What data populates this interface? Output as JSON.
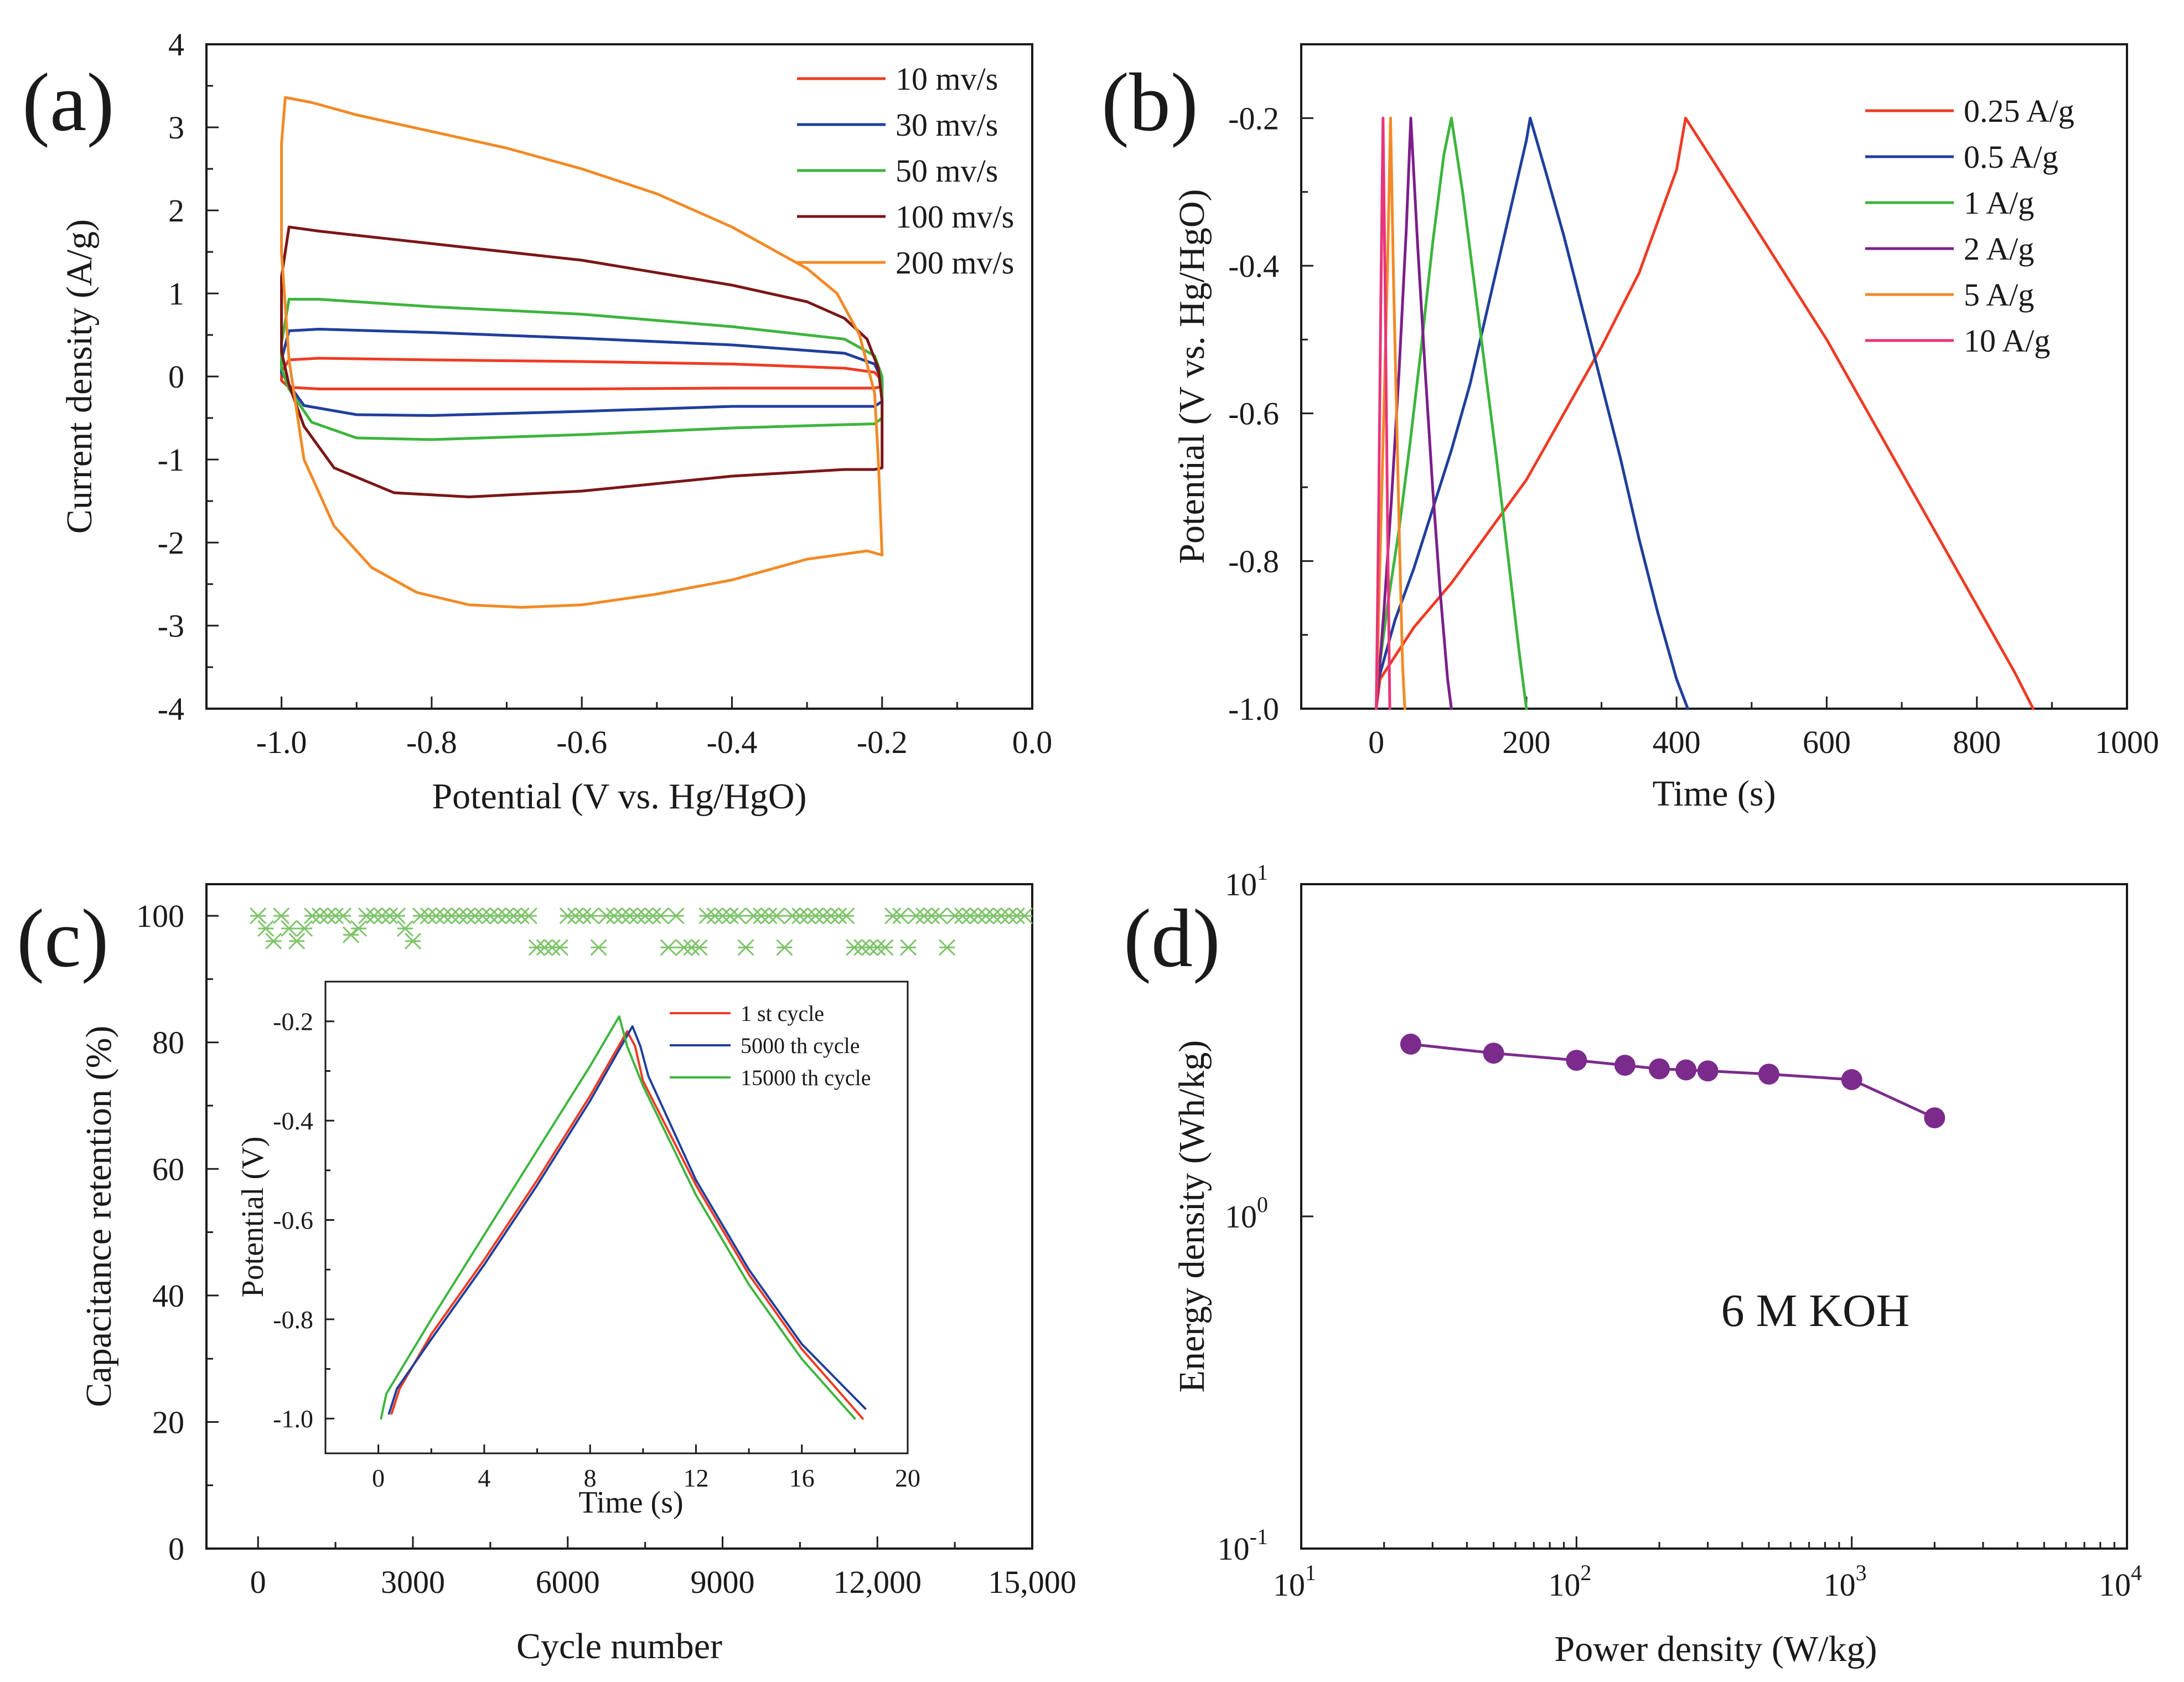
{
  "chart_data": [
    {
      "panel": "(a)",
      "type": "line",
      "title": "",
      "xlabel": "Potential (V vs. Hg/HgO)",
      "ylabel": "Current density (A/g)",
      "xlim": [
        -1.1,
        0.0
      ],
      "ylim": [
        -4,
        4
      ],
      "xticks": [
        -1.0,
        -0.8,
        -0.6,
        -0.4,
        -0.2,
        0.0
      ],
      "xtick_labels": [
        "-1.0",
        "-0.8",
        "-0.6",
        "-0.4",
        "-0.2",
        "0.0"
      ],
      "yticks": [
        -4,
        -3,
        -2,
        -1,
        0,
        1,
        2,
        3,
        4
      ],
      "ytick_labels": [
        "-4",
        "-3",
        "-2",
        "-1",
        "0",
        "1",
        "2",
        "3",
        "4"
      ],
      "legend_position": "top-right",
      "series": [
        {
          "name": "10 mv/s",
          "color": "#ee3b24",
          "x": [
            -1.0,
            -0.99,
            -0.95,
            -0.8,
            -0.6,
            -0.4,
            -0.25,
            -0.21,
            -0.2,
            -0.2,
            -0.21,
            -0.25,
            -0.4,
            -0.6,
            -0.8,
            -0.95,
            -0.99,
            -1.0,
            -1.0
          ],
          "y": [
            0.05,
            0.2,
            0.22,
            0.2,
            0.18,
            0.15,
            0.1,
            0.05,
            -0.05,
            -0.12,
            -0.14,
            -0.14,
            -0.14,
            -0.15,
            -0.15,
            -0.15,
            -0.13,
            -0.05,
            0.05
          ]
        },
        {
          "name": "30 mv/s",
          "color": "#1f3f9c",
          "x": [
            -1.0,
            -0.99,
            -0.95,
            -0.8,
            -0.6,
            -0.4,
            -0.25,
            -0.21,
            -0.2,
            -0.2,
            -0.21,
            -0.25,
            -0.4,
            -0.6,
            -0.8,
            -0.9,
            -0.97,
            -0.99,
            -1.0,
            -1.0
          ],
          "y": [
            0.2,
            0.55,
            0.57,
            0.53,
            0.46,
            0.38,
            0.28,
            0.15,
            -0.05,
            -0.3,
            -0.36,
            -0.36,
            -0.36,
            -0.42,
            -0.47,
            -0.46,
            -0.35,
            -0.1,
            0.05,
            0.2
          ]
        },
        {
          "name": "50 mv/s",
          "color": "#3db53d",
          "x": [
            -1.0,
            -0.99,
            -0.95,
            -0.8,
            -0.6,
            -0.4,
            -0.25,
            -0.21,
            -0.2,
            -0.2,
            -0.21,
            -0.25,
            -0.4,
            -0.6,
            -0.8,
            -0.9,
            -0.96,
            -0.99,
            -1.0,
            -1.0
          ],
          "y": [
            0.4,
            0.93,
            0.93,
            0.84,
            0.75,
            0.6,
            0.45,
            0.25,
            0.0,
            -0.5,
            -0.57,
            -0.58,
            -0.62,
            -0.7,
            -0.76,
            -0.74,
            -0.55,
            -0.15,
            0.1,
            0.4
          ]
        },
        {
          "name": "100 mv/s",
          "color": "#7b1616",
          "x": [
            -1.0,
            -0.99,
            -0.95,
            -0.8,
            -0.6,
            -0.4,
            -0.3,
            -0.25,
            -0.22,
            -0.205,
            -0.2,
            -0.2,
            -0.21,
            -0.25,
            -0.4,
            -0.6,
            -0.75,
            -0.85,
            -0.93,
            -0.97,
            -0.99,
            -1.0,
            -1.0
          ],
          "y": [
            1.2,
            1.8,
            1.75,
            1.6,
            1.4,
            1.1,
            0.9,
            0.7,
            0.45,
            0.1,
            -0.3,
            -1.1,
            -1.12,
            -1.12,
            -1.2,
            -1.38,
            -1.45,
            -1.4,
            -1.1,
            -0.6,
            -0.1,
            0.3,
            1.2
          ]
        },
        {
          "name": "200 mv/s",
          "color": "#f28a26",
          "x": [
            -1.0,
            -0.995,
            -0.96,
            -0.9,
            -0.8,
            -0.7,
            -0.6,
            -0.5,
            -0.4,
            -0.3,
            -0.26,
            -0.23,
            -0.21,
            -0.205,
            -0.2,
            -0.2,
            -0.22,
            -0.3,
            -0.4,
            -0.5,
            -0.6,
            -0.68,
            -0.75,
            -0.82,
            -0.88,
            -0.93,
            -0.97,
            -0.99,
            -1.0,
            -1.0
          ],
          "y": [
            2.8,
            3.36,
            3.3,
            3.15,
            2.95,
            2.75,
            2.5,
            2.2,
            1.8,
            1.3,
            1.0,
            0.5,
            -0.2,
            -1.0,
            -2.15,
            -2.15,
            -2.1,
            -2.2,
            -2.45,
            -2.62,
            -2.75,
            -2.78,
            -2.75,
            -2.6,
            -2.3,
            -1.8,
            -1.0,
            0.2,
            1.5,
            2.8
          ]
        }
      ]
    },
    {
      "panel": "(b)",
      "type": "line",
      "title": "",
      "xlabel": "Time (s)",
      "ylabel": "Potential (V vs. Hg/HgO)",
      "xlim": [
        -100,
        1000
      ],
      "ylim": [
        -1.0,
        -0.1
      ],
      "xticks": [
        0,
        200,
        400,
        600,
        800,
        1000
      ],
      "xtick_labels": [
        "0",
        "200",
        "400",
        "600",
        "800",
        "1000"
      ],
      "yticks": [
        -1.0,
        -0.8,
        -0.6,
        -0.4,
        -0.2
      ],
      "ytick_labels": [
        "-1.0",
        "-0.8",
        "-0.6",
        "-0.4",
        "-0.2"
      ],
      "legend_position": "top-right",
      "series": [
        {
          "name": "0.25 A/g",
          "color": "#ee3b24",
          "x": [
            0,
            5,
            50,
            100,
            150,
            200,
            250,
            300,
            350,
            400,
            412,
            450,
            500,
            550,
            600,
            650,
            700,
            750,
            800,
            850,
            875
          ],
          "y": [
            -1.0,
            -0.96,
            -0.89,
            -0.83,
            -0.76,
            -0.69,
            -0.6,
            -0.51,
            -0.41,
            -0.27,
            -0.2,
            -0.26,
            -0.34,
            -0.42,
            -0.5,
            -0.59,
            -0.68,
            -0.77,
            -0.86,
            -0.95,
            -1.0
          ]
        },
        {
          "name": "0.5 A/g",
          "color": "#1f3f9c",
          "x": [
            0,
            3,
            25,
            50,
            75,
            100,
            125,
            150,
            175,
            200,
            205,
            225,
            250,
            275,
            300,
            325,
            350,
            375,
            400,
            415
          ],
          "y": [
            -1.0,
            -0.96,
            -0.88,
            -0.81,
            -0.73,
            -0.65,
            -0.56,
            -0.45,
            -0.34,
            -0.23,
            -0.2,
            -0.27,
            -0.36,
            -0.46,
            -0.56,
            -0.66,
            -0.77,
            -0.87,
            -0.96,
            -1.0
          ]
        },
        {
          "name": "1 A/g",
          "color": "#3db53d",
          "x": [
            0,
            2,
            15,
            30,
            45,
            60,
            75,
            90,
            100,
            115,
            130,
            145,
            160,
            175,
            190,
            200
          ],
          "y": [
            -1.0,
            -0.96,
            -0.86,
            -0.76,
            -0.64,
            -0.51,
            -0.37,
            -0.25,
            -0.2,
            -0.3,
            -0.42,
            -0.54,
            -0.66,
            -0.79,
            -0.92,
            -1.0
          ]
        },
        {
          "name": "2 A/g",
          "color": "#7b1f8a",
          "x": [
            0,
            10,
            20,
            30,
            40,
            46,
            55,
            65,
            75,
            85,
            95,
            100
          ],
          "y": [
            -1.0,
            -0.87,
            -0.72,
            -0.55,
            -0.35,
            -0.2,
            -0.37,
            -0.54,
            -0.7,
            -0.84,
            -0.96,
            -1.0
          ]
        },
        {
          "name": "5 A/g",
          "color": "#f28a26",
          "x": [
            0,
            5,
            10,
            15,
            19,
            23,
            27,
            31,
            35,
            38
          ],
          "y": [
            -1.0,
            -0.8,
            -0.6,
            -0.4,
            -0.2,
            -0.42,
            -0.6,
            -0.78,
            -0.94,
            -1.0
          ]
        },
        {
          "name": "10 A/g",
          "color": "#e8357b",
          "x": [
            0,
            3,
            6,
            9,
            12,
            15,
            18
          ],
          "y": [
            -1.0,
            -0.75,
            -0.45,
            -0.2,
            -0.45,
            -0.75,
            -1.0
          ]
        }
      ]
    },
    {
      "panel": "(c)",
      "type": "scatter",
      "title": "",
      "xlabel": "Cycle number",
      "ylabel": "Capacitance retention (%)",
      "xlim": [
        -1000,
        15000
      ],
      "ylim": [
        0,
        105
      ],
      "xticks": [
        0,
        3000,
        6000,
        9000,
        12000,
        15000
      ],
      "xtick_labels": [
        "0",
        "3000",
        "6000",
        "9000",
        "12,000",
        "15,000"
      ],
      "yticks": [
        0,
        20,
        40,
        60,
        80,
        100
      ],
      "ytick_labels": [
        "0",
        "20",
        "40",
        "60",
        "80",
        "100"
      ],
      "marker_color": "#7dc46a",
      "series": [
        {
          "name": "Capacitance retention",
          "x": [
            0,
            150,
            300,
            450,
            600,
            750,
            900,
            1050,
            1200,
            1350,
            1500,
            1650,
            1800,
            1950,
            2100,
            2250,
            2400,
            2550,
            2700,
            2850,
            3000,
            3150,
            3300,
            3450,
            3600,
            3750,
            3900,
            4050,
            4200,
            4350,
            4500,
            4650,
            4800,
            4950,
            5100,
            5250,
            5400,
            5550,
            5700,
            5850,
            6000,
            6150,
            6300,
            6450,
            6600,
            6750,
            6900,
            7050,
            7200,
            7350,
            7500,
            7650,
            7800,
            7950,
            8100,
            8250,
            8400,
            8550,
            8700,
            8850,
            9000,
            9150,
            9300,
            9450,
            9600,
            9750,
            9900,
            10050,
            10200,
            10350,
            10500,
            10650,
            10800,
            10950,
            11100,
            11250,
            11400,
            11550,
            11700,
            11850,
            12000,
            12150,
            12300,
            12450,
            12600,
            12750,
            12900,
            13050,
            13200,
            13350,
            13500,
            13650,
            13800,
            13950,
            14100,
            14250,
            14400,
            14550,
            14700,
            14850
          ],
          "y": [
            100,
            98,
            96,
            100,
            98,
            96,
            98,
            100,
            100,
            100,
            100,
            100,
            97,
            98,
            100,
            100,
            100,
            100,
            100,
            98,
            96,
            100,
            100,
            100,
            100,
            100,
            100,
            100,
            100,
            100,
            100,
            100,
            100,
            100,
            100,
            100,
            95,
            95,
            95,
            95,
            100,
            100,
            100,
            100,
            95,
            100,
            100,
            100,
            100,
            100,
            100,
            100,
            100,
            95,
            100,
            95,
            95,
            95,
            100,
            100,
            100,
            100,
            100,
            95,
            100,
            100,
            100,
            100,
            95,
            100,
            100,
            100,
            100,
            100,
            100,
            100,
            100,
            95,
            95,
            95,
            95,
            95,
            100,
            100,
            95,
            100,
            100,
            100,
            100,
            95,
            100,
            100,
            100,
            100,
            100,
            100,
            100,
            100,
            100,
            100
          ]
        }
      ],
      "inset": {
        "type": "line",
        "xlabel": "Time (s)",
        "ylabel": "Potential (V)",
        "xlim": [
          -2,
          20
        ],
        "ylim": [
          -1.07,
          -0.12
        ],
        "xticks": [
          0,
          4,
          8,
          12,
          16,
          20
        ],
        "xtick_labels": [
          "0",
          "4",
          "8",
          "12",
          "16",
          "20"
        ],
        "yticks": [
          -1.0,
          -0.8,
          -0.6,
          -0.4,
          -0.2
        ],
        "ytick_labels": [
          "-1.0",
          "-0.8",
          "-0.6",
          "-0.4",
          "-0.2"
        ],
        "legend_position": "top-right",
        "series": [
          {
            "name": "1 st cycle",
            "color": "#ee3b24",
            "x": [
              0.5,
              0.8,
              2,
              4,
              6,
              8,
              9.4,
              9.7,
              10,
              12,
              14,
              16,
              18.3
            ],
            "y": [
              -0.99,
              -0.94,
              -0.83,
              -0.68,
              -0.52,
              -0.35,
              -0.22,
              -0.25,
              -0.32,
              -0.53,
              -0.71,
              -0.86,
              -1.0
            ]
          },
          {
            "name": "5000 th cycle",
            "color": "#1f3f9c",
            "x": [
              0.4,
              0.7,
              2,
              4,
              6,
              8,
              9.6,
              9.9,
              10.2,
              12,
              14,
              16,
              18.4
            ],
            "y": [
              -0.99,
              -0.94,
              -0.84,
              -0.69,
              -0.53,
              -0.36,
              -0.21,
              -0.25,
              -0.31,
              -0.52,
              -0.7,
              -0.85,
              -0.98
            ]
          },
          {
            "name": "15000 th cycle",
            "color": "#3db53d",
            "x": [
              0.1,
              0.3,
              2,
              4,
              6,
              8,
              9.1,
              9.4,
              10,
              12,
              14,
              16,
              18
            ],
            "y": [
              -1.0,
              -0.95,
              -0.8,
              -0.63,
              -0.46,
              -0.29,
              -0.19,
              -0.25,
              -0.33,
              -0.55,
              -0.73,
              -0.88,
              -1.0
            ]
          }
        ]
      }
    },
    {
      "panel": "(d)",
      "type": "line",
      "title": "",
      "xlabel": "Power density (W/kg)",
      "ylabel": "Energy density (Wh/kg)",
      "xscale": "log",
      "yscale": "log",
      "xlim": [
        10,
        10000
      ],
      "ylim": [
        0.1,
        10
      ],
      "xtick_bases": [
        "10",
        "10",
        "10",
        "10"
      ],
      "xtick_exponents": [
        "1",
        "2",
        "3",
        "4"
      ],
      "ytick_bases": [
        "10",
        "10",
        "10"
      ],
      "ytick_exponents": [
        "-1",
        "0",
        "1"
      ],
      "annotation": "6 M KOH",
      "line_color": "#7b2b8c",
      "series": [
        {
          "name": "6 M KOH",
          "x": [
            25,
            50,
            100,
            150,
            200,
            250,
            300,
            500,
            1000,
            2000
          ],
          "y": [
            3.3,
            3.1,
            2.95,
            2.85,
            2.78,
            2.76,
            2.74,
            2.68,
            2.58,
            1.98
          ]
        }
      ]
    }
  ]
}
